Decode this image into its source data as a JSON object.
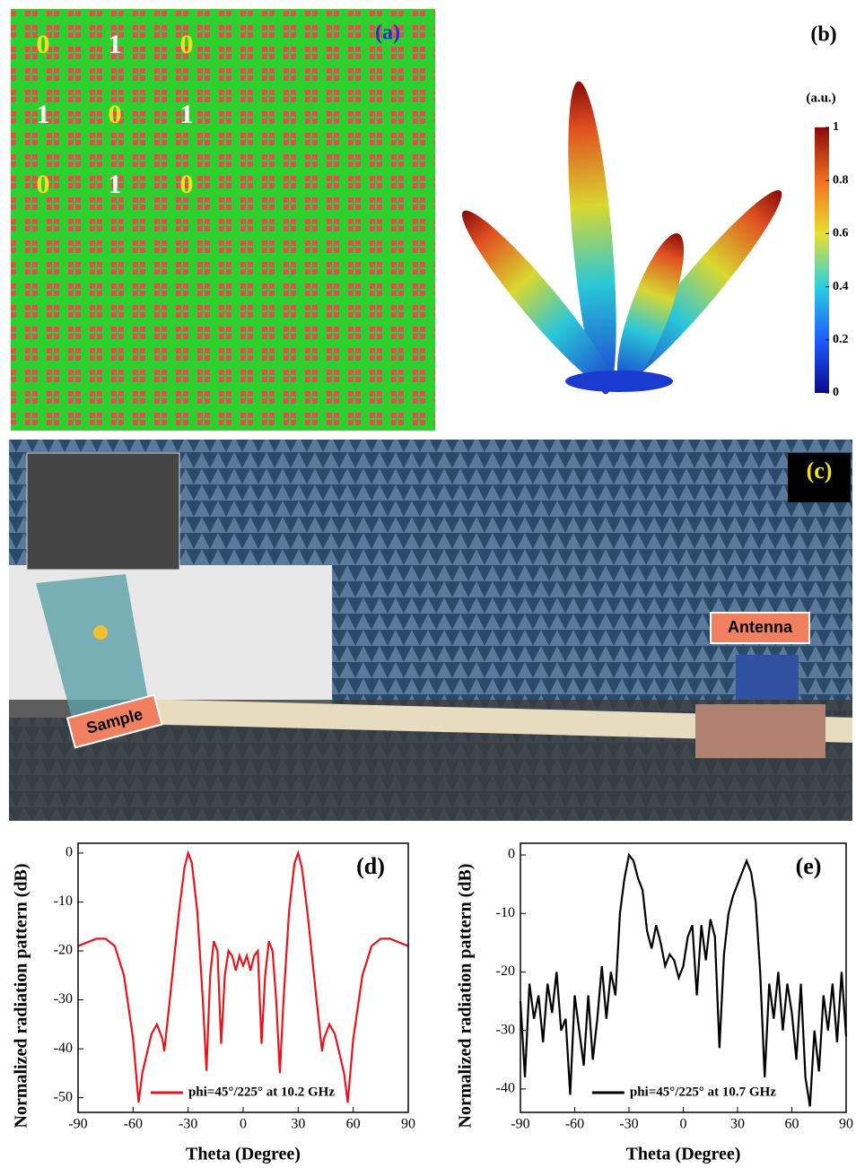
{
  "panel_a": {
    "label": "(a)",
    "digits": [
      [
        "0",
        "1",
        "0"
      ],
      [
        "1",
        "0",
        "1"
      ],
      [
        "0",
        "1",
        "0"
      ]
    ]
  },
  "panel_b": {
    "label": "(b)",
    "colorbar_title": "(a.u.)",
    "colorbar_ticks": [
      0,
      0.2,
      0.4,
      0.6,
      0.8,
      1
    ]
  },
  "panel_c": {
    "label": "(c)",
    "antenna_label": "Antenna",
    "sample_label": "Sample"
  },
  "chart_data": [
    {
      "type": "line",
      "panel_label": "(d)",
      "x_label": "Theta (Degree)",
      "y_label": "Normalized radiation pattern (dB)",
      "series": [
        {
          "name": "phi=45°/225° at 10.2 GHz",
          "color": "#e8141c",
          "x": [
            -90,
            -80,
            -75,
            -70,
            -65,
            -60,
            -57,
            -55,
            -50,
            -47,
            -44,
            -43,
            -40,
            -35,
            -32,
            -30,
            -28,
            -25,
            -22,
            -20,
            -18,
            -16,
            -14,
            -12,
            -10,
            -8,
            -6,
            -4,
            -2,
            0,
            2,
            4,
            6,
            8,
            10,
            12,
            14,
            16,
            18,
            20,
            22,
            25,
            28,
            30,
            32,
            35,
            40,
            43,
            44,
            47,
            50,
            55,
            57,
            60,
            65,
            70,
            75,
            80,
            90
          ],
          "values": [
            -19,
            -17.5,
            -17.5,
            -19,
            -25,
            -38,
            -51,
            -45,
            -37,
            -35,
            -38,
            -40.5,
            -30,
            -12,
            -3,
            0,
            -2,
            -12,
            -30,
            -44.5,
            -25,
            -18,
            -20,
            -39,
            -25,
            -20,
            -21,
            -24,
            -21,
            -23,
            -21,
            -24,
            -21,
            -20,
            -39,
            -25,
            -18,
            -20,
            -30,
            -45,
            -30,
            -12,
            -2,
            0,
            -3,
            -12,
            -30,
            -40.5,
            -38,
            -35,
            -37,
            -45,
            -51,
            -38,
            -25,
            -19,
            -17.5,
            -17.5,
            -19
          ]
        }
      ],
      "xlim": [
        -90,
        90
      ],
      "xticks": [
        -90,
        -60,
        -30,
        0,
        30,
        60,
        90
      ],
      "ylim": [
        -53,
        2
      ],
      "yticks": [
        -50,
        -40,
        -30,
        -20,
        -10,
        0
      ]
    },
    {
      "type": "line",
      "panel_label": "(e)",
      "x_label": "Theta (Degree)",
      "y_label": "Normalized radiation pattern (dB)",
      "series": [
        {
          "name": "phi=45°/225° at 10.7 GHz",
          "color": "#000000",
          "x": [
            -90,
            -87.5,
            -85,
            -82.5,
            -80,
            -77.5,
            -75,
            -72.5,
            -70,
            -67.5,
            -65,
            -62.5,
            -60,
            -57.5,
            -55,
            -52.5,
            -50,
            -47.5,
            -45,
            -42.5,
            -40,
            -37.5,
            -35,
            -32.5,
            -30,
            -27.5,
            -25,
            -22.5,
            -20,
            -17.5,
            -15,
            -12.5,
            -10,
            -7.5,
            -5,
            -2.5,
            0,
            2.5,
            5,
            7.5,
            10,
            12.5,
            15,
            17.5,
            20,
            22.5,
            25,
            27.5,
            30,
            32.5,
            35,
            37.5,
            40,
            42.5,
            45,
            47.5,
            50,
            52.5,
            55,
            57.5,
            60,
            62.5,
            65,
            67.5,
            70,
            72.5,
            75,
            77.5,
            80,
            82.5,
            85,
            87.5,
            90
          ],
          "values": [
            -25,
            -38,
            -22,
            -28,
            -24,
            -32,
            -22,
            -27,
            -20,
            -30,
            -28,
            -41,
            -24,
            -30,
            -36,
            -24,
            -35,
            -28,
            -19,
            -28,
            -20,
            -24,
            -10,
            -4,
            0,
            -1,
            -4,
            -6,
            -13,
            -16,
            -12,
            -15,
            -19,
            -17,
            -18,
            -21,
            -19,
            -14,
            -12,
            -24,
            -12,
            -18,
            -11,
            -14,
            -33,
            -17,
            -10,
            -7,
            -5,
            -3,
            -1,
            -3,
            -8,
            -20,
            -38,
            -22,
            -28,
            -20,
            -30,
            -22,
            -27,
            -35,
            -22,
            -38,
            -43,
            -30,
            -37,
            -24,
            -30,
            -22,
            -32,
            -20,
            -31
          ]
        }
      ],
      "xlim": [
        -90,
        90
      ],
      "xticks": [
        -90,
        -60,
        -30,
        0,
        30,
        60,
        90
      ],
      "ylim": [
        -44,
        2
      ],
      "yticks": [
        -40,
        -30,
        -20,
        -10,
        0
      ]
    }
  ]
}
